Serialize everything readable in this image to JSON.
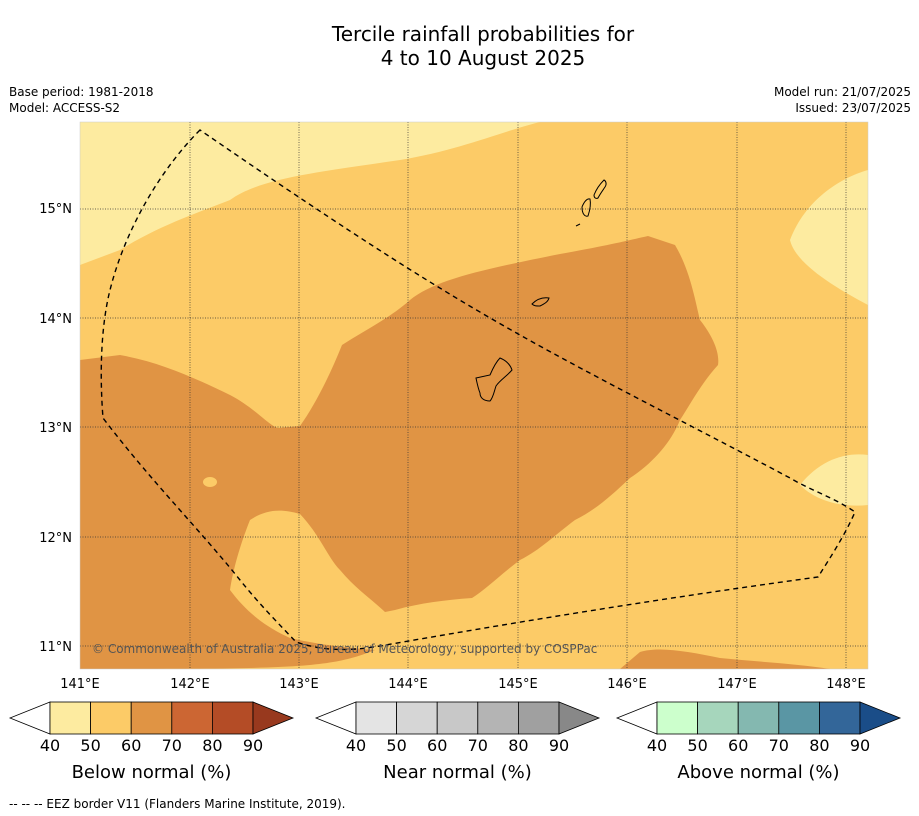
{
  "title": {
    "line1": "Tercile rainfall probabilities for",
    "line2": "4 to 10 August 2025"
  },
  "meta_left": {
    "base_period": "Base period: 1981-2018",
    "model": "Model: ACCESS-S2"
  },
  "meta_right": {
    "model_run": "Model run: 21/07/2025",
    "issued": "Issued: 23/07/2025"
  },
  "map": {
    "lat_labels": [
      "15°N",
      "14°N",
      "13°N",
      "12°N",
      "11°N"
    ],
    "lon_labels": [
      "141°E",
      "142°E",
      "143°E",
      "144°E",
      "145°E",
      "146°E",
      "147°E",
      "148°E"
    ],
    "copyright": "© Commonwealth of Australia 2025, Bureau of Meteorology, supported by COSPPac",
    "colors": {
      "below_40": "#fdeba0",
      "below_50": "#fccb67",
      "below_60": "#e09444"
    }
  },
  "colorbars": [
    {
      "title": "Below normal (%)",
      "ticks": [
        "40",
        "50",
        "60",
        "70",
        "80",
        "90"
      ],
      "colors": [
        "#fdeba0",
        "#fccb67",
        "#e09444",
        "#cc6633",
        "#b44c26",
        "#98391e"
      ]
    },
    {
      "title": "Near normal (%)",
      "ticks": [
        "40",
        "50",
        "60",
        "70",
        "80",
        "90"
      ],
      "colors": [
        "#e4e4e4",
        "#d6d6d6",
        "#c8c8c8",
        "#b4b4b4",
        "#a0a0a0",
        "#888888"
      ]
    },
    {
      "title": "Above normal (%)",
      "ticks": [
        "40",
        "50",
        "60",
        "70",
        "80",
        "90"
      ],
      "colors": [
        "#ccffcc",
        "#a6d6bc",
        "#84b8b0",
        "#5a96a4",
        "#336699",
        "#1a4d88"
      ]
    }
  ],
  "footnote": "--  --  -- EEZ border V11 (Flanders Marine Institute, 2019)."
}
